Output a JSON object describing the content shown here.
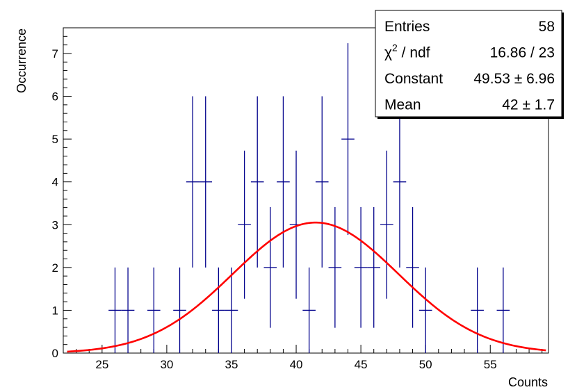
{
  "chart_data": {
    "type": "scatter",
    "title": "",
    "xlabel": "Counts",
    "ylabel": "Occurrence",
    "xlim": [
      22,
      59.5
    ],
    "ylim": [
      0,
      7.6
    ],
    "xticks": [
      25,
      30,
      35,
      40,
      45,
      50,
      55
    ],
    "yticks": [
      0,
      1,
      2,
      3,
      4,
      5,
      6,
      7
    ],
    "grid": false,
    "legend": "none",
    "series": [
      {
        "kind": "histogram",
        "color": "#00008b",
        "bin_width": 1,
        "points": [
          {
            "x": 26,
            "y": 1,
            "err": 1
          },
          {
            "x": 27,
            "y": 1,
            "err": 1
          },
          {
            "x": 29,
            "y": 1,
            "err": 1
          },
          {
            "x": 31,
            "y": 1,
            "err": 1
          },
          {
            "x": 32,
            "y": 4,
            "err": 2
          },
          {
            "x": 33,
            "y": 4,
            "err": 2
          },
          {
            "x": 34,
            "y": 1,
            "err": 1
          },
          {
            "x": 35,
            "y": 1,
            "err": 1
          },
          {
            "x": 36,
            "y": 3,
            "err": 1.73
          },
          {
            "x": 37,
            "y": 4,
            "err": 2
          },
          {
            "x": 38,
            "y": 2,
            "err": 1.41
          },
          {
            "x": 39,
            "y": 4,
            "err": 2
          },
          {
            "x": 40,
            "y": 3,
            "err": 1.73
          },
          {
            "x": 41,
            "y": 1,
            "err": 1
          },
          {
            "x": 42,
            "y": 4,
            "err": 2
          },
          {
            "x": 43,
            "y": 2,
            "err": 1.41
          },
          {
            "x": 44,
            "y": 5,
            "err": 2.24
          },
          {
            "x": 45,
            "y": 2,
            "err": 1.41
          },
          {
            "x": 46,
            "y": 2,
            "err": 1.41
          },
          {
            "x": 47,
            "y": 3,
            "err": 1.73
          },
          {
            "x": 48,
            "y": 4,
            "err": 2
          },
          {
            "x": 49,
            "y": 2,
            "err": 1.41
          },
          {
            "x": 50,
            "y": 1,
            "err": 1
          },
          {
            "x": 54,
            "y": 1,
            "err": 1
          },
          {
            "x": 56,
            "y": 1,
            "err": 1
          }
        ]
      },
      {
        "kind": "gaussian-fit",
        "color": "#ff0000",
        "amplitude": 3.05,
        "mean": 41.5,
        "sigma": 6.4,
        "x_range": [
          22.3,
          59.3
        ]
      }
    ],
    "stats_box": {
      "rows": [
        {
          "label": "Entries",
          "value": "58"
        },
        {
          "label": "χ",
          "label_sup": "2",
          "label_rest": " / ndf",
          "value": "16.86 / 23"
        },
        {
          "label": "Constant",
          "value": "49.53 ± 6.96"
        },
        {
          "label": "Mean",
          "value": "42 ± 1.7"
        }
      ]
    }
  }
}
